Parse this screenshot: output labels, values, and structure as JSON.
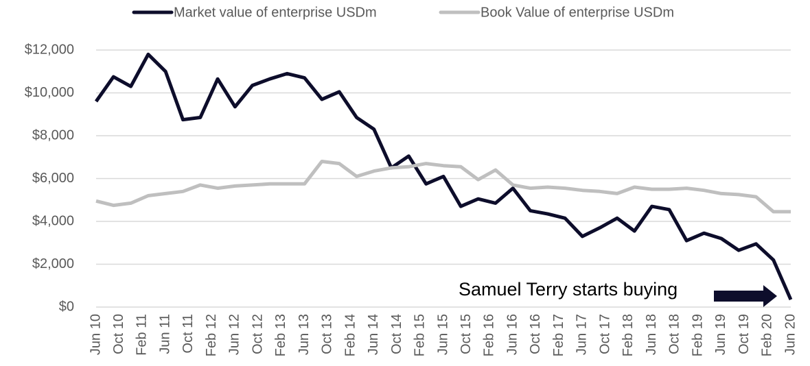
{
  "chart_data": {
    "type": "line",
    "x": [
      0,
      3,
      6,
      9,
      12,
      15,
      18,
      21,
      24,
      27,
      30,
      33,
      36,
      39,
      42,
      45,
      48,
      51,
      54,
      57,
      60,
      63,
      66,
      69,
      72,
      75,
      78,
      81,
      84,
      87,
      90,
      93,
      96,
      99,
      102,
      105,
      108,
      111,
      114,
      117,
      120
    ],
    "xlim": [
      0,
      120
    ],
    "xticks": [
      {
        "value": 0,
        "label": "Jun 10"
      },
      {
        "value": 4,
        "label": "Oct 10"
      },
      {
        "value": 8,
        "label": "Feb 11"
      },
      {
        "value": 12,
        "label": "Jun 11"
      },
      {
        "value": 16,
        "label": "Oct 11"
      },
      {
        "value": 20,
        "label": "Feb 12"
      },
      {
        "value": 24,
        "label": "Jun 12"
      },
      {
        "value": 28,
        "label": "Oct 12"
      },
      {
        "value": 32,
        "label": "Feb 13"
      },
      {
        "value": 36,
        "label": "Jun 13"
      },
      {
        "value": 40,
        "label": "Oct 13"
      },
      {
        "value": 44,
        "label": "Feb 14"
      },
      {
        "value": 48,
        "label": "Jun 14"
      },
      {
        "value": 52,
        "label": "Oct 14"
      },
      {
        "value": 56,
        "label": "Feb 15"
      },
      {
        "value": 60,
        "label": "Jun 15"
      },
      {
        "value": 64,
        "label": "Oct 15"
      },
      {
        "value": 68,
        "label": "Feb 16"
      },
      {
        "value": 72,
        "label": "Jun 16"
      },
      {
        "value": 76,
        "label": "Oct 16"
      },
      {
        "value": 80,
        "label": "Feb 17"
      },
      {
        "value": 84,
        "label": "Jun 17"
      },
      {
        "value": 88,
        "label": "Oct 17"
      },
      {
        "value": 92,
        "label": "Feb 18"
      },
      {
        "value": 96,
        "label": "Jun 18"
      },
      {
        "value": 100,
        "label": "Oct 18"
      },
      {
        "value": 104,
        "label": "Feb 19"
      },
      {
        "value": 108,
        "label": "Jun 19"
      },
      {
        "value": 112,
        "label": "Oct 19"
      },
      {
        "value": 116,
        "label": "Feb 20"
      },
      {
        "value": 120,
        "label": "Jun 20"
      }
    ],
    "ylim": [
      0,
      12000
    ],
    "yticks": [
      {
        "value": 0,
        "label": "$0"
      },
      {
        "value": 2000,
        "label": "$2,000"
      },
      {
        "value": 4000,
        "label": "$4,000"
      },
      {
        "value": 6000,
        "label": "$6,000"
      },
      {
        "value": 8000,
        "label": "$8,000"
      },
      {
        "value": 10000,
        "label": "$10,000"
      },
      {
        "value": 12000,
        "label": "$12,000"
      }
    ],
    "grid": true,
    "series": [
      {
        "name": "Market value of enterprise USDm",
        "color": "#0d0d2b",
        "values": [
          9600,
          10750,
          10300,
          11800,
          11000,
          8750,
          8850,
          10650,
          9350,
          10350,
          10650,
          10900,
          10700,
          9700,
          10050,
          8850,
          8300,
          6500,
          7050,
          5750,
          6100,
          4700,
          5050,
          4850,
          5550,
          4500,
          4350,
          4150,
          3300,
          3700,
          4150,
          3550,
          4700,
          4550,
          3100,
          3450,
          3200,
          2650,
          2950,
          2200,
          350
        ]
      },
      {
        "name": "Book Value of enterprise USDm",
        "color": "#bfbfbf",
        "values": [
          4950,
          4750,
          4850,
          5200,
          5300,
          5400,
          5700,
          5550,
          5650,
          5700,
          5750,
          5750,
          5750,
          6800,
          6700,
          6100,
          6350,
          6500,
          6550,
          6700,
          6600,
          6550,
          5950,
          6400,
          5700,
          5550,
          5600,
          5550,
          5450,
          5400,
          5300,
          5600,
          5500,
          5500,
          5550,
          5450,
          5300,
          5250,
          5150,
          4450,
          4450
        ]
      }
    ],
    "annotation": "Samuel Terry starts buying"
  }
}
